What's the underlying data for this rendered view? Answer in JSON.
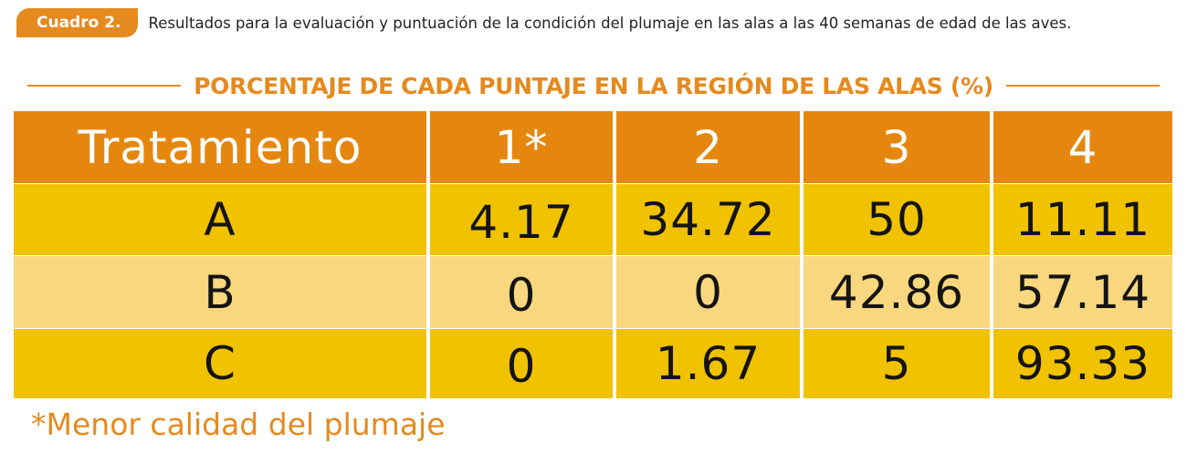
{
  "caption": {
    "label": "Cuadro 2.",
    "text": "Resultados para la evaluación y puntuación de la condición del plumaje en las alas a las 40 semanas de edad de las aves."
  },
  "heading": "PORCENTAJE DE CADA PUNTAJE EN LA REGIÓN DE LAS ALAS (%)",
  "table": {
    "headers": [
      "Tratamiento",
      "1*",
      "2",
      "3",
      "4"
    ],
    "rows": [
      [
        "A",
        "4.17",
        "34.72",
        "50",
        "11.11"
      ],
      [
        "B",
        "0",
        "0",
        "42.86",
        "57.14"
      ],
      [
        "C",
        "0",
        "1.67",
        "5",
        "93.33"
      ]
    ]
  },
  "footnote": "*Menor calidad del plumaje",
  "colors": {
    "accent": "#e58a1f",
    "header_fill": "#e5870f",
    "row_dark": "#f0c200",
    "row_light": "#f8d77e"
  }
}
